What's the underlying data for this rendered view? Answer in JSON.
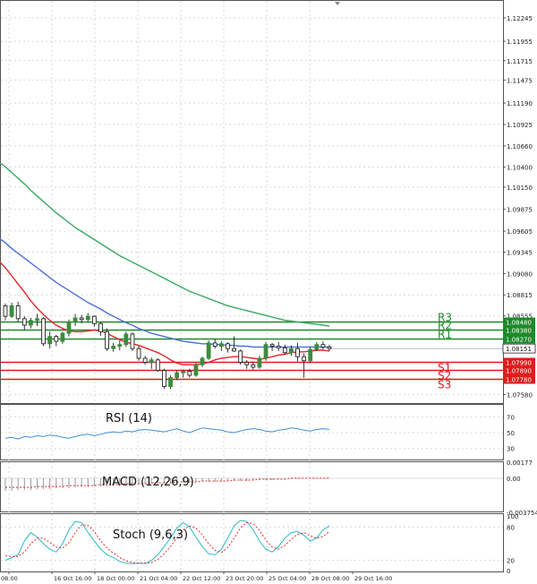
{
  "chart_data": {
    "type": "candlestick",
    "symbol": "EUR/USD",
    "main": {
      "y_ticks": [
        "1.12245",
        "1.11955",
        "1.11715",
        "1.11475",
        "1.11190",
        "1.10925",
        "1.10660",
        "1.10400",
        "1.10150",
        "1.09875",
        "1.09605",
        "1.09345",
        "1.09080",
        "1.08815",
        "1.08555",
        "1.07580"
      ],
      "y_range": [
        1.0752,
        1.124
      ],
      "current_price": "1.08151",
      "pivots": [
        {
          "name": "R3",
          "value": "1.08480",
          "num": 1.0848,
          "kind": "resistance"
        },
        {
          "name": "R2",
          "value": "1.08380",
          "num": 1.0838,
          "kind": "resistance"
        },
        {
          "name": "R1",
          "value": "1.08270",
          "num": 1.0827,
          "kind": "resistance"
        },
        {
          "name": "S1",
          "value": "1.07990",
          "num": 1.0799,
          "kind": "support"
        },
        {
          "name": "S2",
          "value": "1.07890",
          "num": 1.0789,
          "kind": "support"
        },
        {
          "name": "S3",
          "value": "1.07780",
          "num": 1.0778,
          "kind": "support"
        }
      ],
      "candles": [
        [
          1.0868,
          1.0871,
          1.085,
          1.0855
        ],
        [
          1.0855,
          1.0872,
          1.0853,
          1.0868
        ],
        [
          1.0868,
          1.0873,
          1.0848,
          1.0852
        ],
        [
          1.0852,
          1.0855,
          1.0838,
          1.0844
        ],
        [
          1.0844,
          1.0853,
          1.084,
          1.085
        ],
        [
          1.085,
          1.0858,
          1.0843,
          1.0852
        ],
        [
          1.0852,
          1.0854,
          1.0818,
          1.0821
        ],
        [
          1.0821,
          1.0836,
          1.0815,
          1.083
        ],
        [
          1.083,
          1.0832,
          1.0818,
          1.0824
        ],
        [
          1.0824,
          1.0836,
          1.0821,
          1.0834
        ],
        [
          1.0834,
          1.0851,
          1.083,
          1.0848
        ],
        [
          1.0848,
          1.0858,
          1.0843,
          1.0853
        ],
        [
          1.0853,
          1.0857,
          1.0846,
          1.0851
        ],
        [
          1.0851,
          1.0859,
          1.0848,
          1.0855
        ],
        [
          1.0855,
          1.0856,
          1.0842,
          1.0846
        ],
        [
          1.0846,
          1.0848,
          1.0831,
          1.0836
        ],
        [
          1.0836,
          1.084,
          1.0812,
          1.0815
        ],
        [
          1.0815,
          1.0822,
          1.0811,
          1.0818
        ],
        [
          1.0818,
          1.0825,
          1.0813,
          1.082
        ],
        [
          1.082,
          1.0836,
          1.0817,
          1.0833
        ],
        [
          1.0833,
          1.0835,
          1.0812,
          1.0815
        ],
        [
          1.0815,
          1.0818,
          1.08,
          1.0803
        ],
        [
          1.0803,
          1.0806,
          1.0795,
          1.0798
        ],
        [
          1.0798,
          1.0804,
          1.079,
          1.0801
        ],
        [
          1.0801,
          1.0803,
          1.0786,
          1.0788
        ],
        [
          1.0788,
          1.079,
          1.0765,
          1.0768
        ],
        [
          1.0768,
          1.0782,
          1.0765,
          1.0779
        ],
        [
          1.0779,
          1.0788,
          1.0776,
          1.0785
        ],
        [
          1.0785,
          1.0789,
          1.0779,
          1.0787
        ],
        [
          1.0787,
          1.079,
          1.0779,
          1.0782
        ],
        [
          1.0782,
          1.0798,
          1.078,
          1.0795
        ],
        [
          1.0795,
          1.0805,
          1.0792,
          1.0803
        ],
        [
          1.0803,
          1.0825,
          1.0801,
          1.0822
        ],
        [
          1.0822,
          1.0827,
          1.0815,
          1.0818
        ],
        [
          1.0818,
          1.0824,
          1.0812,
          1.0821
        ],
        [
          1.0821,
          1.0823,
          1.081,
          1.0815
        ],
        [
          1.0815,
          1.083,
          1.0811,
          1.0812
        ],
        [
          1.0812,
          1.0814,
          1.0795,
          1.0798
        ],
        [
          1.0798,
          1.0801,
          1.079,
          1.0795
        ],
        [
          1.0795,
          1.0799,
          1.0789,
          1.0792
        ],
        [
          1.0792,
          1.0806,
          1.079,
          1.0803
        ],
        [
          1.0803,
          1.0823,
          1.08,
          1.082
        ],
        [
          1.082,
          1.0822,
          1.0812,
          1.0818
        ],
        [
          1.0818,
          1.0823,
          1.0812,
          1.0816
        ],
        [
          1.0816,
          1.082,
          1.0808,
          1.081
        ],
        [
          1.081,
          1.0819,
          1.0806,
          1.0815
        ],
        [
          1.0815,
          1.0822,
          1.0799,
          1.0805
        ],
        [
          1.0805,
          1.0809,
          1.0779,
          1.08
        ],
        [
          1.08,
          1.0817,
          1.0797,
          1.0814
        ],
        [
          1.0814,
          1.0823,
          1.0812,
          1.082
        ],
        [
          1.082,
          1.0824,
          1.0814,
          1.0817
        ],
        [
          1.0817,
          1.082,
          1.0812,
          1.0815
        ]
      ],
      "ma_fast": [
        1.0915,
        1.0905,
        1.0895,
        1.0885,
        1.0874,
        1.0865,
        1.0857,
        1.085,
        1.0844,
        1.084,
        1.0837,
        1.0836,
        1.0836,
        1.0837,
        1.0838,
        1.0837,
        1.0834,
        1.083,
        1.0826,
        1.0823,
        1.0821,
        1.0819,
        1.0816,
        1.0813,
        1.081,
        1.0806,
        1.0801,
        1.0797,
        1.0795,
        1.0795,
        1.0795,
        1.0796,
        1.0798,
        1.0801,
        1.0803,
        1.0804,
        1.0805,
        1.0805,
        1.0804,
        1.0803,
        1.0802,
        1.0803,
        1.0805,
        1.0807,
        1.0808,
        1.081,
        1.0811,
        1.0811,
        1.0812,
        1.0813,
        1.0813,
        1.0812
      ],
      "ma_mid": [
        1.0946,
        1.0939,
        1.0933,
        1.0927,
        1.0921,
        1.0915,
        1.0909,
        1.0903,
        1.0897,
        1.0892,
        1.0887,
        1.0882,
        1.0877,
        1.0872,
        1.0868,
        1.0864,
        1.0859,
        1.0855,
        1.0851,
        1.0847,
        1.0844,
        1.084,
        1.0837,
        1.0834,
        1.0832,
        1.083,
        1.0828,
        1.0826,
        1.0824,
        1.0823,
        1.0822,
        1.0821,
        1.0821,
        1.082,
        1.082,
        1.0819,
        1.0819,
        1.0818,
        1.0818,
        1.0817,
        1.0817,
        1.0817,
        1.0817,
        1.0817,
        1.0817,
        1.0817,
        1.0817,
        1.0817,
        1.0817,
        1.0817,
        1.0817,
        1.0817
      ],
      "ma_slow": [
        1.104,
        1.1033,
        1.1026,
        1.1019,
        1.1011,
        1.1004,
        1.0997,
        1.099,
        1.0983,
        1.0977,
        1.0971,
        1.0965,
        1.096,
        1.0955,
        1.095,
        1.0945,
        1.094,
        1.0935,
        1.093,
        1.0926,
        1.0922,
        1.0918,
        1.0914,
        1.091,
        1.0906,
        1.0902,
        1.0898,
        1.0894,
        1.089,
        1.0886,
        1.0883,
        1.088,
        1.0877,
        1.0874,
        1.0871,
        1.0868,
        1.0866,
        1.0864,
        1.0862,
        1.086,
        1.0858,
        1.0856,
        1.0854,
        1.0852,
        1.085,
        1.0849,
        1.0848,
        1.0847,
        1.0846,
        1.0845,
        1.0844,
        1.0843
      ]
    },
    "rsi": {
      "label": "RSI (14)",
      "ticks": [
        "70",
        "50",
        "30"
      ],
      "values": [
        43,
        44,
        42,
        45,
        44,
        46,
        45,
        47,
        46,
        44,
        43,
        45,
        47,
        48,
        46,
        48,
        50,
        51,
        50,
        52,
        51,
        53,
        54,
        53,
        52,
        51,
        53,
        55,
        52,
        50,
        53,
        56,
        55,
        54,
        53,
        51,
        50,
        52,
        54,
        55,
        54,
        52,
        51,
        53,
        54,
        56,
        55,
        53,
        52,
        54,
        55,
        54
      ]
    },
    "macd": {
      "label": "MACD (12,26,9)",
      "ticks": [
        "0.00177",
        "0.00",
        "-0.003754"
      ],
      "histogram": [
        -0.0014,
        -0.0014,
        -0.0013,
        -0.0013,
        -0.0013,
        -0.0012,
        -0.0012,
        -0.0012,
        -0.0011,
        -0.0011,
        -0.0011,
        -0.001,
        -0.001,
        -0.001,
        -0.0009,
        -0.0009,
        -0.0009,
        -0.0008,
        -0.0008,
        -0.0008,
        -0.0007,
        -0.0007,
        -0.0007,
        -0.0006,
        -0.0006,
        -0.0006,
        -0.0006,
        -0.0005,
        -0.0005,
        -0.0005,
        -0.0005,
        -0.0004,
        -0.0004,
        -0.0004,
        -0.0004,
        -0.0003,
        -0.0003,
        -0.0003,
        -0.0003,
        -0.0002,
        -0.0002,
        -0.0002,
        -0.0002,
        -0.0001,
        -0.0001,
        -0.0001,
        -0.0001,
        0.0,
        0.0,
        0.0,
        0.0,
        0.0
      ],
      "signal": [
        -0.001,
        -0.001,
        -0.001,
        -0.001,
        -0.001,
        -0.0009,
        -0.0009,
        -0.0009,
        -0.0009,
        -0.0009,
        -0.0008,
        -0.0008,
        -0.0008,
        -0.0008,
        -0.0008,
        -0.0007,
        -0.0007,
        -0.0007,
        -0.0007,
        -0.0006,
        -0.0006,
        -0.0006,
        -0.0006,
        -0.0005,
        -0.0005,
        -0.0005,
        -0.0005,
        -0.0004,
        -0.0004,
        -0.0004,
        -0.0004,
        -0.0003,
        -0.0003,
        -0.0003,
        -0.0003,
        -0.0003,
        -0.0002,
        -0.0002,
        -0.0002,
        -0.0002,
        -0.0001,
        -0.0001,
        -0.0001,
        -0.0001,
        -0.0001,
        0.0,
        0.0,
        0.0,
        0.0,
        0.0,
        0.0,
        0.0
      ]
    },
    "stoch": {
      "label": "Stoch (9,6,3)",
      "ticks": [
        "100",
        "80",
        "20",
        "0"
      ],
      "k": [
        20,
        25,
        30,
        55,
        70,
        62,
        50,
        40,
        35,
        50,
        75,
        90,
        88,
        70,
        55,
        40,
        30,
        25,
        18,
        15,
        14,
        15,
        14,
        20,
        30,
        45,
        60,
        78,
        88,
        80,
        62,
        45,
        32,
        30,
        40,
        60,
        82,
        92,
        90,
        75,
        55,
        40,
        35,
        45,
        60,
        70,
        72,
        65,
        55,
        60,
        75,
        82
      ],
      "d": [
        28,
        27,
        27,
        35,
        50,
        60,
        60,
        52,
        44,
        42,
        52,
        70,
        84,
        83,
        72,
        55,
        42,
        33,
        25,
        19,
        16,
        15,
        15,
        16,
        22,
        32,
        45,
        60,
        75,
        82,
        78,
        66,
        50,
        38,
        34,
        43,
        60,
        78,
        88,
        86,
        74,
        57,
        44,
        40,
        47,
        58,
        67,
        70,
        64,
        60,
        63,
        72
      ]
    },
    "x_labels": [
      "08:00",
      "16 Oct 16:00",
      "18 Oct 00:00",
      "21 Oct 04:00",
      "22 Oct 12:00",
      "23 Oct 20:00",
      "25 Oct 04:00",
      "28 Oct 08:00",
      "29 Oct 16:00"
    ]
  },
  "colors": {
    "background": "#ffffff",
    "grid": "#d9d9d9",
    "bull_candle": "#3c8c3c",
    "bear_candle": "#222222",
    "ma_fast": "#e8232a",
    "ma_mid": "#4a6fd6",
    "ma_slow": "#3aa864",
    "resistance": "#1d8a2a",
    "support": "#e01b1b",
    "price_box": "#ffffff",
    "rsi_line": "#3f8fd4",
    "stoch_k": "#2bb7c9",
    "stoch_d": "#e0302a",
    "macd_signal": "#e0302a",
    "macd_hist": "#999999"
  }
}
